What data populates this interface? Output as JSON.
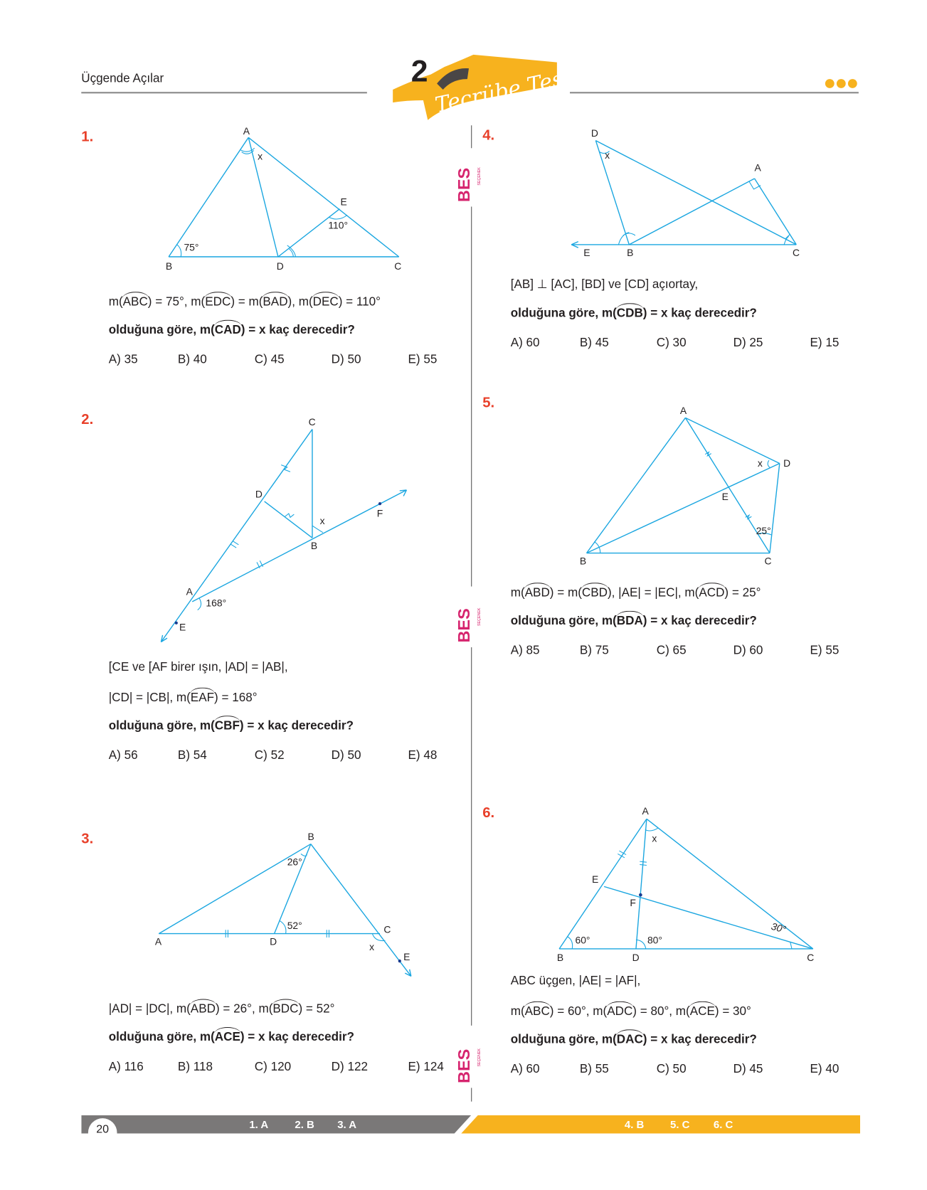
{
  "header": {
    "title": "Üçgende Açılar",
    "test_number": "2",
    "test_name": "Tecrübe Testi",
    "logo_text": "BES SEÇENEK"
  },
  "colors": {
    "accent_orange": "#f7b21e",
    "question_red": "#e8402a",
    "figure_cyan": "#1aa6e0",
    "footer_gray": "#7a7878",
    "logo_magenta": "#d6246e"
  },
  "questions": [
    {
      "num": "1.",
      "lines": [
        {
          "bold": false,
          "segs": [
            {
              "t": "m("
            },
            {
              "arc": "ABC"
            },
            {
              "t": ") = 75°, m("
            },
            {
              "arc": "EDC"
            },
            {
              "t": ") = m("
            },
            {
              "arc": "BAD"
            },
            {
              "t": "), m("
            },
            {
              "arc": "DEC"
            },
            {
              "t": ") = 110°"
            }
          ]
        },
        {
          "bold": true,
          "segs": [
            {
              "t": "olduğuna göre, m("
            },
            {
              "arc": "CAD"
            },
            {
              "t": ") = x kaç derecedir?"
            }
          ]
        }
      ],
      "options": [
        "A) 35",
        "B) 40",
        "C) 45",
        "D) 50",
        "E) 55"
      ],
      "figure_labels": {
        "A": "A",
        "B": "B",
        "C": "C",
        "D": "D",
        "E": "E",
        "x": "x",
        "a1": "75°",
        "a2": "110°"
      }
    },
    {
      "num": "2.",
      "lines": [
        {
          "bold": false,
          "segs": [
            {
              "t": "[CE ve [AF birer ışın, |AD| = |AB|,"
            }
          ]
        },
        {
          "bold": false,
          "segs": [
            {
              "t": "|CD| = |CB|, m("
            },
            {
              "arc": "EAF"
            },
            {
              "t": ") = 168°"
            }
          ]
        },
        {
          "bold": true,
          "segs": [
            {
              "t": "olduğuna göre, m("
            },
            {
              "arc": "CBF"
            },
            {
              "t": ") = x kaç derecedir?"
            }
          ]
        }
      ],
      "options": [
        "A) 56",
        "B) 54",
        "C) 52",
        "D) 50",
        "E) 48"
      ],
      "figure_labels": {
        "A": "A",
        "B": "B",
        "C": "C",
        "D": "D",
        "E": "E",
        "F": "F",
        "x": "x",
        "a1": "168°"
      }
    },
    {
      "num": "3.",
      "lines": [
        {
          "bold": false,
          "segs": [
            {
              "t": "|AD| = |DC|, m("
            },
            {
              "arc": "ABD"
            },
            {
              "t": ") = 26°, m("
            },
            {
              "arc": "BDC"
            },
            {
              "t": ") = 52°"
            }
          ]
        },
        {
          "bold": true,
          "segs": [
            {
              "t": "olduğuna göre, m("
            },
            {
              "arc": "ACE"
            },
            {
              "t": ") = x kaç derecedir?"
            }
          ]
        }
      ],
      "options": [
        "A) 116",
        "B) 118",
        "C) 120",
        "D) 122",
        "E) 124"
      ],
      "figure_labels": {
        "A": "A",
        "B": "B",
        "C": "C",
        "D": "D",
        "E": "E",
        "x": "x",
        "a1": "26°",
        "a2": "52°"
      }
    },
    {
      "num": "4.",
      "lines": [
        {
          "bold": false,
          "segs": [
            {
              "t": "[AB] ⊥ [AC], [BD] ve [CD] açıortay,"
            }
          ]
        },
        {
          "bold": true,
          "segs": [
            {
              "t": "olduğuna göre, m("
            },
            {
              "arc": "CDB"
            },
            {
              "t": ") = x kaç derecedir?"
            }
          ]
        }
      ],
      "options": [
        "A) 60",
        "B) 45",
        "C) 30",
        "D) 25",
        "E) 15"
      ],
      "figure_labels": {
        "A": "A",
        "B": "B",
        "C": "C",
        "D": "D",
        "E": "E",
        "x": "x"
      }
    },
    {
      "num": "5.",
      "lines": [
        {
          "bold": false,
          "segs": [
            {
              "t": "m("
            },
            {
              "arc": "ABD"
            },
            {
              "t": ") = m("
            },
            {
              "arc": "CBD"
            },
            {
              "t": "), |AE| = |EC|, m("
            },
            {
              "arc": "ACD"
            },
            {
              "t": ") = 25°"
            }
          ]
        },
        {
          "bold": true,
          "segs": [
            {
              "t": "olduğuna göre, m("
            },
            {
              "arc": "BDA"
            },
            {
              "t": ") = x kaç derecedir?"
            }
          ]
        }
      ],
      "options": [
        "A) 85",
        "B) 75",
        "C) 65",
        "D) 60",
        "E) 55"
      ],
      "figure_labels": {
        "A": "A",
        "B": "B",
        "C": "C",
        "D": "D",
        "E": "E",
        "x": "x",
        "a1": "25°"
      }
    },
    {
      "num": "6.",
      "lines": [
        {
          "bold": false,
          "segs": [
            {
              "t": "ABC üçgen, |AE| = |AF|,"
            }
          ]
        },
        {
          "bold": false,
          "segs": [
            {
              "t": "m("
            },
            {
              "arc": "ABC"
            },
            {
              "t": ") = 60°, m("
            },
            {
              "arc": "ADC"
            },
            {
              "t": ") = 80°, m("
            },
            {
              "arc": "ACE"
            },
            {
              "t": ") = 30°"
            }
          ]
        },
        {
          "bold": true,
          "segs": [
            {
              "t": "olduğuna göre, m("
            },
            {
              "arc": "DAC"
            },
            {
              "t": ") = x kaç derecedir?"
            }
          ]
        }
      ],
      "options": [
        "A) 60",
        "B) 55",
        "C) 50",
        "D) 45",
        "E) 40"
      ],
      "figure_labels": {
        "A": "A",
        "B": "B",
        "C": "C",
        "D": "D",
        "E": "E",
        "F": "F",
        "x": "x",
        "a1": "60°",
        "a2": "80°",
        "a3": "30°"
      }
    }
  ],
  "footer": {
    "page_number": "20",
    "answers_left": [
      "1. A",
      "2. B",
      "3. A"
    ],
    "answers_right": [
      "4. B",
      "5. C",
      "6. C"
    ]
  }
}
